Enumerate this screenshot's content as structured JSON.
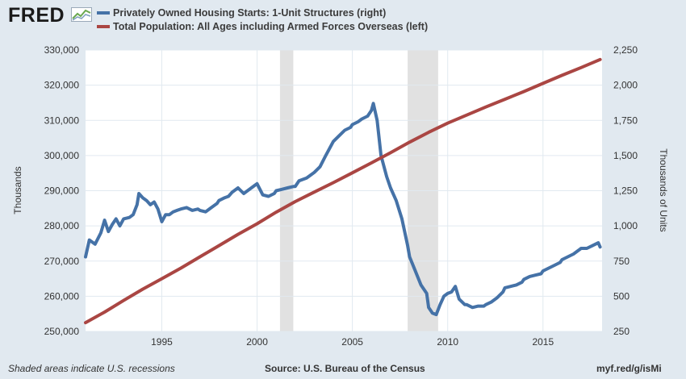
{
  "header": {
    "logo_text": "FRED"
  },
  "legend": [
    {
      "label": "Privately Owned Housing Starts: 1-Unit Structures (right)",
      "color": "#4572a7"
    },
    {
      "label": "Total Population: All Ages including Armed Forces Overseas (left)",
      "color": "#aa4643"
    }
  ],
  "footer": {
    "recessions_note": "Shaded areas indicate U.S. recessions",
    "source": "Source: U.S. Bureau of the Census",
    "url": "myf.red/g/isMi"
  },
  "chart_data": {
    "type": "line",
    "x_range": [
      1991.0,
      2018.1
    ],
    "x_ticks": [
      1995,
      2000,
      2005,
      2010,
      2015
    ],
    "left_axis": {
      "label": "Thousands",
      "range": [
        250000,
        330000
      ],
      "ticks": [
        "250,000",
        "260,000",
        "270,000",
        "280,000",
        "290,000",
        "300,000",
        "310,000",
        "320,000",
        "330,000"
      ]
    },
    "right_axis": {
      "label": "Thousands of Units",
      "range": [
        250,
        2250
      ],
      "ticks": [
        "250",
        "500",
        "750",
        "1,000",
        "1,250",
        "1,500",
        "1,750",
        "2,000",
        "2,250"
      ]
    },
    "recessions": [
      [
        2001.2,
        2001.9
      ],
      [
        2007.9,
        2009.5
      ]
    ],
    "grid": true,
    "series": [
      {
        "name": "Privately Owned Housing Starts: 1-Unit Structures (right)",
        "axis": "right",
        "color": "#4572a7",
        "x": [
          1991.0,
          1991.2,
          1991.5,
          1991.8,
          1992.0,
          1992.2,
          1992.4,
          1992.6,
          1992.8,
          1993.0,
          1993.3,
          1993.5,
          1993.7,
          1993.8,
          1994.0,
          1994.2,
          1994.4,
          1994.6,
          1994.8,
          1995.0,
          1995.2,
          1995.4,
          1995.6,
          1995.8,
          1996.0,
          1996.3,
          1996.6,
          1996.9,
          1997.0,
          1997.3,
          1997.6,
          1997.9,
          1998.0,
          1998.3,
          1998.5,
          1998.7,
          1999.0,
          1999.3,
          1999.6,
          1999.9,
          2000.0,
          2000.3,
          2000.6,
          2000.9,
          2001.0,
          2001.3,
          2001.6,
          2001.9,
          2002.0,
          2002.2,
          2002.4,
          2002.6,
          2002.8,
          2003.0,
          2003.3,
          2003.6,
          2003.8,
          2004.0,
          2004.3,
          2004.6,
          2004.9,
          2005.0,
          2005.3,
          2005.5,
          2005.8,
          2006.0,
          2006.1,
          2006.3,
          2006.5,
          2006.8,
          2007.0,
          2007.3,
          2007.6,
          2007.9,
          2008.0,
          2008.3,
          2008.6,
          2008.9,
          2009.0,
          2009.2,
          2009.4,
          2009.6,
          2009.8,
          2010.0,
          2010.2,
          2010.4,
          2010.6,
          2010.9,
          2011.0,
          2011.3,
          2011.6,
          2011.9,
          2012.0,
          2012.3,
          2012.6,
          2012.9,
          2013.0,
          2013.3,
          2013.6,
          2013.9,
          2014.0,
          2014.3,
          2014.6,
          2014.9,
          2015.0,
          2015.3,
          2015.6,
          2015.9,
          2016.0,
          2016.3,
          2016.6,
          2016.9,
          2017.0,
          2017.3,
          2017.6,
          2017.9,
          2018.0
        ],
        "values": [
          780,
          900,
          870,
          950,
          1040,
          960,
          1010,
          1050,
          1000,
          1050,
          1060,
          1080,
          1150,
          1230,
          1200,
          1180,
          1150,
          1170,
          1120,
          1030,
          1080,
          1080,
          1100,
          1110,
          1120,
          1130,
          1110,
          1120,
          1110,
          1100,
          1130,
          1160,
          1180,
          1200,
          1210,
          1240,
          1270,
          1230,
          1260,
          1290,
          1300,
          1220,
          1210,
          1230,
          1250,
          1260,
          1270,
          1280,
          1280,
          1320,
          1330,
          1340,
          1360,
          1380,
          1420,
          1500,
          1550,
          1600,
          1640,
          1680,
          1700,
          1720,
          1740,
          1760,
          1780,
          1820,
          1870,
          1750,
          1500,
          1350,
          1270,
          1180,
          1050,
          860,
          780,
          680,
          580,
          520,
          420,
          380,
          370,
          440,
          500,
          520,
          530,
          570,
          480,
          440,
          440,
          420,
          430,
          430,
          440,
          460,
          490,
          530,
          560,
          570,
          580,
          600,
          620,
          640,
          650,
          660,
          680,
          700,
          720,
          740,
          760,
          780,
          800,
          830,
          840,
          840,
          860,
          880,
          850
        ]
      },
      {
        "name": "Total Population: All Ages including Armed Forces Overseas (left)",
        "axis": "left",
        "color": "#aa4643",
        "x": [
          1991.0,
          1992.0,
          1993.0,
          1994.0,
          1995.0,
          1996.0,
          1997.0,
          1998.0,
          1999.0,
          2000.0,
          2001.0,
          2002.0,
          2003.0,
          2004.0,
          2005.0,
          2006.0,
          2007.0,
          2008.0,
          2009.0,
          2010.0,
          2011.0,
          2012.0,
          2013.0,
          2014.0,
          2015.0,
          2016.0,
          2017.0,
          2018.0
        ],
        "values": [
          252500,
          255500,
          258800,
          262000,
          265000,
          268000,
          271200,
          274400,
          277600,
          280600,
          283900,
          286900,
          289600,
          292300,
          295100,
          297900,
          300800,
          303800,
          306600,
          309200,
          311500,
          313800,
          316000,
          318200,
          320500,
          322800,
          325000,
          327300
        ]
      }
    ]
  }
}
